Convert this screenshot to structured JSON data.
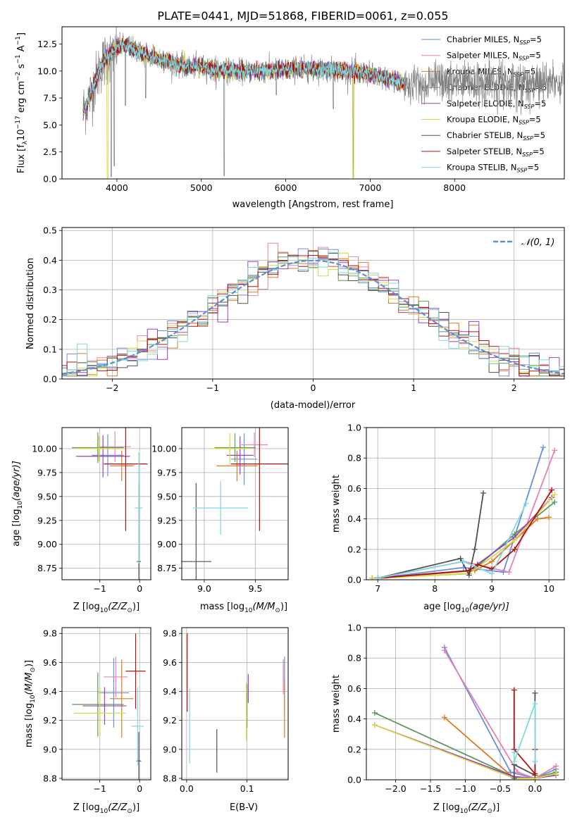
{
  "figure_title": "PLATE=0441, MJD=51868, FIBERID=0061, z=0.055",
  "colors": {
    "chabrier_miles": "#6a8fd8",
    "salpeter_miles": "#e880b8",
    "kroupa_miles": "#e07a20",
    "chabrier_elodie": "#5a9a5a",
    "salpeter_elodie": "#9a40c0",
    "kroupa_elodie": "#d8d840",
    "chabrier_stelib": "#505050",
    "salpeter_stelib": "#b01010",
    "kroupa_stelib": "#80d8e0",
    "normal": "#5b8fd6"
  },
  "legend": {
    "entries": [
      {
        "label": "Chabrier MILES, N",
        "sub": "SSP",
        "suffix": "=5",
        "key": "chabrier_miles"
      },
      {
        "label": "Salpeter MILES, N",
        "sub": "SSP",
        "suffix": "=5",
        "key": "salpeter_miles"
      },
      {
        "label": "Kroupa MILES, N",
        "sub": "SSP",
        "suffix": "=5",
        "key": "kroupa_miles"
      },
      {
        "label": "Chabrier ELODIE, N",
        "sub": "SSP",
        "suffix": "=5",
        "key": "chabrier_elodie"
      },
      {
        "label": "Salpeter ELODIE, N",
        "sub": "SSP",
        "suffix": "=5",
        "key": "salpeter_elodie"
      },
      {
        "label": "Kroupa ELODIE, N",
        "sub": "SSP",
        "suffix": "=5",
        "key": "kroupa_elodie"
      },
      {
        "label": "Chabrier STELIB, N",
        "sub": "SSP",
        "suffix": "=5",
        "key": "chabrier_stelib"
      },
      {
        "label": "Salpeter STELIB, N",
        "sub": "SSP",
        "suffix": "=5",
        "key": "salpeter_stelib"
      },
      {
        "label": "Kroupa STELIB, N",
        "sub": "SSP",
        "suffix": "=5",
        "key": "kroupa_stelib"
      }
    ],
    "normal_label": "𝒩(0, 1)"
  },
  "chart_data": [
    {
      "id": "spectrum",
      "type": "line",
      "xlabel": "wavelength [Angstrom, rest frame]",
      "ylabel": "Flux [f",
      "ylabel_rest": "10",
      "ylabel_unit": " erg cm",
      "ylabel_tail": " s",
      "ylabel_end": " A",
      "xlim": [
        3350,
        9300
      ],
      "ylim": [
        0,
        14.1
      ],
      "xticks": [
        "4000",
        "5000",
        "6000",
        "7000",
        "8000"
      ],
      "xtick_values": [
        4000,
        5000,
        6000,
        7000,
        8000
      ],
      "yticks": [
        "0.0",
        "2.5",
        "5.0",
        "7.5",
        "10.0",
        "12.5"
      ],
      "ytick_values": [
        0,
        2.5,
        5,
        7.5,
        10,
        12.5
      ],
      "continuum": [
        [
          3600,
          6.3
        ],
        [
          3700,
          8.0
        ],
        [
          3800,
          10.3
        ],
        [
          3900,
          11.5
        ],
        [
          4000,
          12.2
        ],
        [
          4100,
          12.4
        ],
        [
          4200,
          12.0
        ],
        [
          4400,
          11.3
        ],
        [
          4600,
          10.9
        ],
        [
          4800,
          10.4
        ],
        [
          5000,
          10.4
        ],
        [
          5200,
          10.1
        ],
        [
          5500,
          10.0
        ],
        [
          5800,
          10.0
        ],
        [
          6200,
          10.2
        ],
        [
          6600,
          10.1
        ],
        [
          6900,
          9.9
        ],
        [
          7200,
          9.3
        ],
        [
          7400,
          8.9
        ]
      ],
      "absorption_lines": [
        [
          3933,
          0.2
        ],
        [
          3968,
          1.2
        ],
        [
          4102,
          6.8
        ],
        [
          4340,
          7.5
        ],
        [
          5270,
          0.3
        ],
        [
          5890,
          7.8
        ],
        [
          6563,
          6.5
        ],
        [
          6800,
          0.1
        ]
      ]
    },
    {
      "id": "residuals",
      "type": "histogram",
      "xlabel": "(data-model)/error",
      "ylabel": "Normed distribution",
      "xlim": [
        -2.5,
        2.5
      ],
      "ylim": [
        0,
        0.51
      ],
      "xticks": [
        "−2",
        "−1",
        "0",
        "1",
        "2"
      ],
      "xtick_values": [
        -2,
        -1,
        0,
        1,
        2
      ],
      "yticks": [
        "0.0",
        "0.1",
        "0.2",
        "0.3",
        "0.4",
        "0.5"
      ],
      "ytick_values": [
        0,
        0.1,
        0.2,
        0.3,
        0.4,
        0.5
      ],
      "bin_width": 0.1
    },
    {
      "id": "age_vs_Z",
      "type": "errorbar",
      "xlabel": "Z [log",
      "xlabel_sub": "10",
      "xlabel_tail": "(Z/Z",
      "xlabel_end": ")]",
      "ylabel": "age  [log",
      "ylabel_sub": "10",
      "ylabel_tail": "(age/yr)]",
      "xlim": [
        -1.95,
        0.28
      ],
      "ylim": [
        8.63,
        10.22
      ],
      "xticks": [
        "−1",
        "0"
      ],
      "xtick_values": [
        -1,
        0
      ],
      "yticks": [
        "8.75",
        "9.00",
        "9.25",
        "9.50",
        "9.75",
        "10.00"
      ],
      "ytick_values": [
        8.75,
        9.0,
        9.25,
        9.5,
        9.75,
        10.0
      ],
      "points": [
        {
          "key": "chabrier_miles",
          "x": -0.8,
          "xerr": 0.4,
          "y": 9.93,
          "yerr": 0.22
        },
        {
          "key": "salpeter_miles",
          "x": -0.62,
          "xerr": 0.4,
          "y": 10.02,
          "yerr": 0.16
        },
        {
          "key": "kroupa_miles",
          "x": -0.45,
          "xerr": 0.3,
          "y": 9.82,
          "yerr": 0.16
        },
        {
          "key": "chabrier_elodie",
          "x": -1.05,
          "xerr": 0.65,
          "y": 10.01,
          "yerr": 0.16
        },
        {
          "key": "salpeter_elodie",
          "x": -0.92,
          "xerr": 0.68,
          "y": 9.92,
          "yerr": 0.22
        },
        {
          "key": "kroupa_elodie",
          "x": -1.02,
          "xerr": 0.6,
          "y": 10.0,
          "yerr": 0.13
        },
        {
          "key": "chabrier_stelib",
          "x": -0.02,
          "xerr": 0.05,
          "y": 8.82,
          "yerr": 0.82
        },
        {
          "key": "salpeter_stelib",
          "x": -0.35,
          "xerr": 0.55,
          "y": 9.84,
          "yerr": 0.7
        },
        {
          "key": "kroupa_stelib",
          "x": -0.02,
          "xerr": 0.1,
          "y": 9.38,
          "yerr": 0.58
        }
      ]
    },
    {
      "id": "age_vs_mass",
      "type": "errorbar",
      "xlabel": "mass [log",
      "xlabel_sub": "10",
      "xlabel_tail": "(M/M",
      "xlabel_end": ")]",
      "ylabel": "",
      "xlim": [
        8.78,
        9.82
      ],
      "ylim": [
        8.63,
        10.22
      ],
      "xticks": [
        "9.0",
        "9.5"
      ],
      "xtick_values": [
        9.0,
        9.5
      ],
      "yticks": [
        "8.75",
        "9.00",
        "9.25",
        "9.50",
        "9.75",
        "10.00"
      ],
      "ytick_values": [
        8.75,
        9.0,
        9.25,
        9.5,
        9.75,
        10.0
      ],
      "points": [
        {
          "key": "chabrier_miles",
          "x": 9.39,
          "xerr": 0.13,
          "y": 9.89,
          "yerr": 0.27
        },
        {
          "key": "salpeter_miles",
          "x": 9.49,
          "xerr": 0.13,
          "y": 10.04,
          "yerr": 0.13
        },
        {
          "key": "kroupa_miles",
          "x": 9.32,
          "xerr": 0.2,
          "y": 9.82,
          "yerr": 0.16
        },
        {
          "key": "chabrier_elodie",
          "x": 9.3,
          "xerr": 0.2,
          "y": 10.01,
          "yerr": 0.15
        },
        {
          "key": "salpeter_elodie",
          "x": 9.35,
          "xerr": 0.13,
          "y": 9.93,
          "yerr": 0.2
        },
        {
          "key": "kroupa_elodie",
          "x": 9.25,
          "xerr": 0.2,
          "y": 10.0,
          "yerr": 0.16
        },
        {
          "key": "chabrier_stelib",
          "x": 8.92,
          "xerr": 0.15,
          "y": 8.82,
          "yerr": 0.82
        },
        {
          "key": "salpeter_stelib",
          "x": 9.54,
          "xerr": 0.28,
          "y": 9.84,
          "yerr": 0.7
        },
        {
          "key": "kroupa_stelib",
          "x": 9.16,
          "xerr": 0.27,
          "y": 9.38,
          "yerr": 0.28
        }
      ]
    },
    {
      "id": "weight_vs_age",
      "type": "line",
      "xlabel": "age  [log",
      "xlabel_sub": "10",
      "xlabel_tail": "(age/yr)]",
      "ylabel": "mass weight",
      "xlim": [
        6.8,
        10.27
      ],
      "ylim": [
        0,
        1.0
      ],
      "xticks": [
        "7",
        "8",
        "9",
        "10"
      ],
      "xtick_values": [
        7,
        8,
        9,
        10
      ],
      "yticks": [
        "0.0",
        "0.2",
        "0.4",
        "0.6",
        "0.8",
        "1.0"
      ],
      "ytick_values": [
        0,
        0.2,
        0.4,
        0.6,
        0.8,
        1.0
      ],
      "series": [
        {
          "key": "chabrier_miles",
          "x": [
            7.0,
            8.5,
            9.2,
            9.9
          ],
          "y": [
            0.01,
            0.08,
            0.05,
            0.87
          ]
        },
        {
          "key": "salpeter_miles",
          "x": [
            7.0,
            8.5,
            9.3,
            10.1
          ],
          "y": [
            0.01,
            0.12,
            0.05,
            0.85
          ]
        },
        {
          "key": "kroupa_miles",
          "x": [
            7.0,
            8.7,
            9.0,
            9.8,
            10.0
          ],
          "y": [
            0.01,
            0.06,
            0.12,
            0.4,
            0.41
          ]
        },
        {
          "key": "chabrier_elodie",
          "x": [
            6.9,
            8.6,
            9.4,
            10.1
          ],
          "y": [
            0.01,
            0.04,
            0.3,
            0.51
          ]
        },
        {
          "key": "salpeter_elodie",
          "x": [
            6.9,
            8.6,
            9.4,
            10.05
          ],
          "y": [
            0.01,
            0.06,
            0.28,
            0.54
          ]
        },
        {
          "key": "kroupa_elodie",
          "x": [
            6.9,
            8.6,
            9.4,
            10.1
          ],
          "y": [
            0.01,
            0.04,
            0.26,
            0.56
          ]
        },
        {
          "key": "chabrier_stelib",
          "x": [
            7.0,
            8.45,
            8.6,
            8.7,
            8.85
          ],
          "y": [
            0.01,
            0.14,
            0.03,
            0.2,
            0.57
          ]
        },
        {
          "key": "salpeter_stelib",
          "x": [
            7.0,
            8.6,
            8.75,
            9.0,
            9.4,
            10.05
          ],
          "y": [
            0.01,
            0.06,
            0.1,
            0.07,
            0.2,
            0.59
          ]
        },
        {
          "key": "kroupa_stelib",
          "x": [
            7.0,
            8.5,
            9.0,
            9.6
          ],
          "y": [
            0.01,
            0.12,
            0.04,
            0.5
          ]
        }
      ]
    },
    {
      "id": "mass_vs_Z",
      "type": "errorbar",
      "xlabel": "Z [log",
      "xlabel_sub": "10",
      "xlabel_tail": "(Z/Z",
      "xlabel_end": ")]",
      "ylabel": "mass [log",
      "ylabel_sub": "10",
      "ylabel_tail": "(M/M",
      "ylabel_end": ")]",
      "xlim": [
        -1.95,
        0.28
      ],
      "ylim": [
        8.79,
        9.84
      ],
      "xticks": [
        "−1",
        "0"
      ],
      "xtick_values": [
        -1,
        0
      ],
      "yticks": [
        "8.8",
        "9.0",
        "9.2",
        "9.4",
        "9.6",
        "9.8"
      ],
      "ytick_values": [
        8.8,
        9.0,
        9.2,
        9.4,
        9.6,
        9.8
      ],
      "points": [
        {
          "key": "chabrier_miles",
          "x": -0.65,
          "xerr": 0.38,
          "y": 9.39,
          "yerr": 0.24
        },
        {
          "key": "salpeter_miles",
          "x": -0.6,
          "xerr": 0.3,
          "y": 9.5,
          "yerr": 0.14
        },
        {
          "key": "kroupa_miles",
          "x": -0.45,
          "xerr": 0.3,
          "y": 9.35,
          "yerr": 0.27
        },
        {
          "key": "chabrier_elodie",
          "x": -1.05,
          "xerr": 0.65,
          "y": 9.31,
          "yerr": 0.22
        },
        {
          "key": "salpeter_elodie",
          "x": -0.88,
          "xerr": 0.55,
          "y": 9.3,
          "yerr": 0.13
        },
        {
          "key": "kroupa_elodie",
          "x": -1.0,
          "xerr": 0.65,
          "y": 9.25,
          "yerr": 0.17
        },
        {
          "key": "chabrier_stelib",
          "x": -0.02,
          "xerr": 0.06,
          "y": 8.92,
          "yerr": 0.2
        },
        {
          "key": "salpeter_stelib",
          "x": -0.1,
          "xerr": 0.25,
          "y": 9.54,
          "yerr": 0.26
        },
        {
          "key": "kroupa_stelib",
          "x": -0.05,
          "xerr": 0.15,
          "y": 9.16,
          "yerr": 0.27
        }
      ]
    },
    {
      "id": "mass_vs_ebv",
      "type": "errorbar",
      "xlabel": "E(B-V)",
      "ylabel": "",
      "xlim": [
        -0.008,
        0.168
      ],
      "ylim": [
        8.79,
        9.84
      ],
      "xticks": [
        "0.0",
        "0.1"
      ],
      "xtick_values": [
        0,
        0.1
      ],
      "yticks": [
        "8.8",
        "9.0",
        "9.2",
        "9.4",
        "9.6",
        "9.8"
      ],
      "ytick_values": [
        8.8,
        9.0,
        9.2,
        9.4,
        9.6,
        9.8
      ],
      "points": [
        {
          "key": "chabrier_miles",
          "x": 0.162,
          "xerr": 0,
          "y": 9.44,
          "yerr": 0.2
        },
        {
          "key": "salpeter_miles",
          "x": 0.16,
          "xerr": 0,
          "y": 9.5,
          "yerr": 0.12
        },
        {
          "key": "kroupa_miles",
          "x": 0.162,
          "xerr": 0,
          "y": 9.28,
          "yerr": 0.2
        },
        {
          "key": "chabrier_elodie",
          "x": 0.1,
          "xerr": 0,
          "y": 9.3,
          "yerr": 0.15
        },
        {
          "key": "salpeter_elodie",
          "x": 0.102,
          "xerr": 0,
          "y": 9.42,
          "yerr": 0.1
        },
        {
          "key": "kroupa_elodie",
          "x": 0.099,
          "xerr": 0,
          "y": 9.26,
          "yerr": 0.2
        },
        {
          "key": "chabrier_stelib",
          "x": 0.05,
          "xerr": 0,
          "y": 8.99,
          "yerr": 0.15
        },
        {
          "key": "salpeter_stelib",
          "x": 0.001,
          "xerr": 0,
          "y": 9.53,
          "yerr": 0.27
        },
        {
          "key": "kroupa_stelib",
          "x": 0.005,
          "xerr": 0,
          "y": 9.16,
          "yerr": 0.26
        }
      ]
    },
    {
      "id": "weight_vs_Z",
      "type": "line",
      "xlabel": "Z [log",
      "xlabel_sub": "10",
      "xlabel_tail": "(Z/Z",
      "xlabel_end": ")]",
      "ylabel": "mass weight",
      "xlim": [
        -2.42,
        0.42
      ],
      "ylim": [
        0,
        1.0
      ],
      "xticks": [
        "−2.0",
        "−1.5",
        "−1.0",
        "−0.5",
        "0.0"
      ],
      "xtick_values": [
        -2.0,
        -1.5,
        -1.0,
        -0.5,
        0.0
      ],
      "yticks": [
        "0.0",
        "0.2",
        "0.4",
        "0.6",
        "0.8",
        "1.0"
      ],
      "ytick_values": [
        0,
        0.2,
        0.4,
        0.6,
        0.8,
        1.0
      ],
      "series": [
        {
          "key": "chabrier_miles",
          "x": [
            -1.3,
            -0.35,
            0.0,
            0.3
          ],
          "y": [
            0.87,
            0.05,
            0.01,
            0.07
          ]
        },
        {
          "key": "salpeter_miles",
          "x": [
            -1.3,
            -0.25,
            0.0,
            0.3
          ],
          "y": [
            0.85,
            0.05,
            0.01,
            0.09
          ]
        },
        {
          "key": "kroupa_miles",
          "x": [
            -1.3,
            -0.3,
            0.0,
            0.3
          ],
          "y": [
            0.41,
            0.01,
            0.01,
            0.05
          ]
        },
        {
          "key": "chabrier_elodie",
          "x": [
            -2.3,
            -0.3,
            0.0,
            0.3
          ],
          "y": [
            0.44,
            0.02,
            0.01,
            0.05
          ]
        },
        {
          "key": "salpeter_elodie",
          "x": [
            -2.3,
            -0.3,
            0.0,
            0.3
          ],
          "y": [
            0.36,
            0.02,
            0.01,
            0.03
          ]
        },
        {
          "key": "kroupa_elodie",
          "x": [
            -2.3,
            -0.3,
            0.0,
            0.3
          ],
          "y": [
            0.36,
            0.01,
            0.01,
            0.04
          ]
        },
        {
          "key": "chabrier_stelib",
          "x": [
            -0.3,
            -0.3,
            0.0,
            0.0
          ],
          "y": [
            0.01,
            0.1,
            0.03,
            0.57
          ]
        },
        {
          "key": "salpeter_stelib",
          "x": [
            -0.3,
            -0.3,
            0.0,
            0.0
          ],
          "y": [
            0.59,
            0.2,
            0.04,
            0.2
          ]
        },
        {
          "key": "kroupa_stelib",
          "x": [
            -0.3,
            -0.3,
            0.0,
            0.0
          ],
          "y": [
            0.18,
            0.12,
            0.5,
            0.12
          ]
        }
      ]
    }
  ]
}
